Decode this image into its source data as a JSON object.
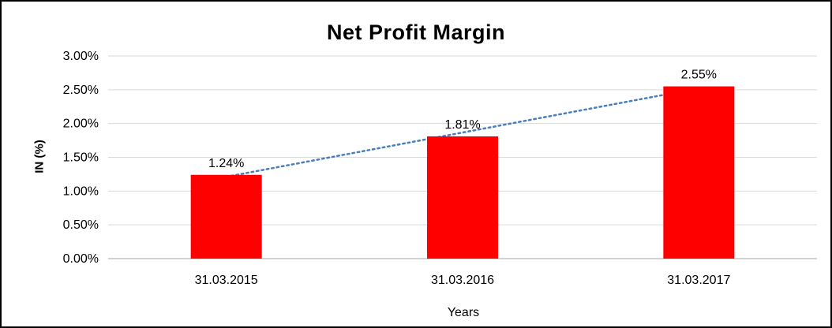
{
  "chart_data": {
    "type": "bar",
    "title": "Net Profit Margin",
    "xlabel": "Years",
    "ylabel": "IN (%)",
    "categories": [
      "31.03.2015",
      "31.03.2016",
      "31.03.2017"
    ],
    "values": [
      1.24,
      1.81,
      2.55
    ],
    "data_labels": [
      "1.24%",
      "1.81%",
      "2.55%"
    ],
    "y_ticks": [
      {
        "label": "0.00%",
        "value": 0.0
      },
      {
        "label": "0.50%",
        "value": 0.5
      },
      {
        "label": "1.00%",
        "value": 1.0
      },
      {
        "label": "1.50%",
        "value": 1.5
      },
      {
        "label": "2.00%",
        "value": 2.0
      },
      {
        "label": "2.50%",
        "value": 2.5
      },
      {
        "label": "3.00%",
        "value": 3.0
      }
    ],
    "ylim": [
      0,
      3.0
    ],
    "grid": true,
    "legend": "none",
    "colors": {
      "bar": "#FF0000",
      "trendline": "#4A7EBB",
      "gridline": "#D9D9D9",
      "axis_line": "#A6A6A6",
      "text": "#000000"
    },
    "trendline": {
      "style": "dotted",
      "fit": "linear",
      "points": [
        1.24,
        1.81,
        2.55
      ]
    }
  }
}
